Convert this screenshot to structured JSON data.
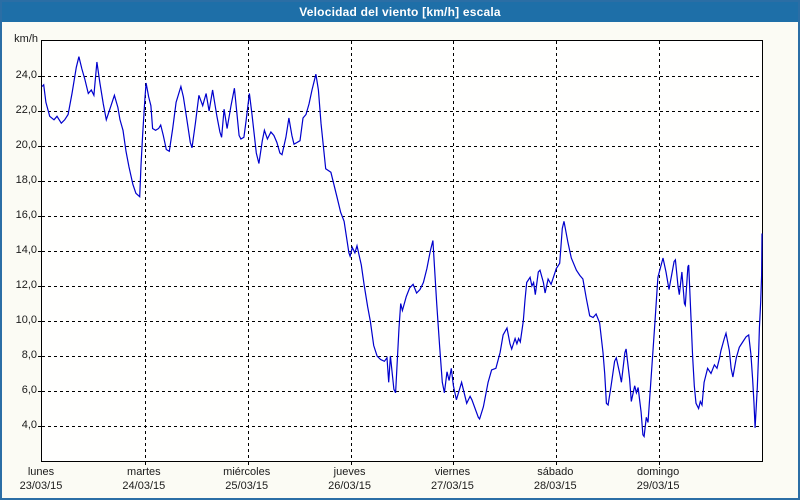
{
  "window": {
    "title": "Velocidad del viento [km/h] escala"
  },
  "axes": {
    "unit_label": "km/h",
    "y_tick_labels": [
      "24,0",
      "22,0",
      "20,0",
      "18,0",
      "16,0",
      "14,0",
      "12,0",
      "10,0",
      "8,0",
      "6,0",
      "4,0"
    ],
    "y_tick_values": [
      24,
      22,
      20,
      18,
      16,
      14,
      12,
      10,
      8,
      6,
      4
    ],
    "x_categories": [
      {
        "day": "lunes",
        "date": "23/03/15"
      },
      {
        "day": "martes",
        "date": "24/03/15"
      },
      {
        "day": "miércoles",
        "date": "25/03/15"
      },
      {
        "day": "jueves",
        "date": "26/03/15"
      },
      {
        "day": "viernes",
        "date": "27/03/15"
      },
      {
        "day": "sábado",
        "date": "28/03/15"
      },
      {
        "day": "domingo",
        "date": "29/03/15"
      }
    ]
  },
  "colors": {
    "titlebar": "#1e6fa8",
    "window_border": "#2b6ea5",
    "line": "#0000cd",
    "grid": "#000000",
    "plot_bg": "#fffffe",
    "page_bg": "#fbfbf4"
  },
  "chart_data": {
    "type": "line",
    "title": "Velocidad del viento [km/h] escala",
    "ylabel": "km/h",
    "ylim": [
      2,
      26
    ],
    "xlim_hours": [
      0,
      168
    ],
    "grid": "dashed",
    "legend": "none",
    "x_is_time": "hours over 7 days (23/03/15 - 29/03/15), day ticks every 24 h",
    "series": [
      {
        "name": "Velocidad del viento",
        "points": [
          [
            0,
            23.4
          ],
          [
            0.4,
            23.5
          ],
          [
            0.9,
            22.5
          ],
          [
            1.8,
            21.7
          ],
          [
            2.8,
            21.5
          ],
          [
            3.5,
            21.7
          ],
          [
            4.5,
            21.3
          ],
          [
            5.3,
            21.5
          ],
          [
            6.1,
            21.8
          ],
          [
            7,
            23
          ],
          [
            8,
            24.5
          ],
          [
            8.6,
            25.1
          ],
          [
            9.3,
            24.4
          ],
          [
            10,
            23.8
          ],
          [
            10.8,
            23
          ],
          [
            11.5,
            23.2
          ],
          [
            12.1,
            22.9
          ],
          [
            12.8,
            24.8
          ],
          [
            13.5,
            23.6
          ],
          [
            14.3,
            22.4
          ],
          [
            15,
            21.5
          ],
          [
            16.1,
            22.3
          ],
          [
            16.9,
            22.9
          ],
          [
            17.7,
            22.2
          ],
          [
            18.2,
            21.5
          ],
          [
            18.9,
            20.9
          ],
          [
            19.6,
            19.7
          ],
          [
            20.3,
            18.8
          ],
          [
            21.2,
            17.8
          ],
          [
            21.9,
            17.3
          ],
          [
            22.8,
            17.1
          ],
          [
            23.1,
            18.9
          ],
          [
            23.5,
            20.7
          ],
          [
            24,
            22.7
          ],
          [
            24.3,
            23.6
          ],
          [
            24.9,
            22.8
          ],
          [
            25.4,
            22.3
          ],
          [
            25.8,
            21
          ],
          [
            26.5,
            20.9
          ],
          [
            27.2,
            21
          ],
          [
            27.7,
            21.2
          ],
          [
            28.3,
            20.6
          ],
          [
            29,
            19.8
          ],
          [
            29.7,
            19.7
          ],
          [
            30.5,
            21
          ],
          [
            31.3,
            22.5
          ],
          [
            32.4,
            23.4
          ],
          [
            33,
            22.8
          ],
          [
            33.8,
            21.5
          ],
          [
            34.6,
            20.2
          ],
          [
            35,
            19.9
          ],
          [
            35.8,
            21.3
          ],
          [
            36.6,
            22.9
          ],
          [
            37.5,
            22.3
          ],
          [
            38.3,
            23
          ],
          [
            39,
            22
          ],
          [
            39.8,
            23.2
          ],
          [
            40.8,
            21.7
          ],
          [
            41.5,
            20.8
          ],
          [
            41.9,
            20.5
          ],
          [
            42.5,
            22.1
          ],
          [
            43.2,
            21
          ],
          [
            44.1,
            22.3
          ],
          [
            44.9,
            23.3
          ],
          [
            46,
            20.6
          ],
          [
            46.4,
            20.4
          ],
          [
            47.1,
            20.5
          ],
          [
            47.6,
            21.4
          ],
          [
            48,
            22.2
          ],
          [
            48.4,
            23
          ],
          [
            49,
            21.8
          ],
          [
            50,
            19.6
          ],
          [
            50.6,
            19
          ],
          [
            51.4,
            20.3
          ],
          [
            51.9,
            20.9
          ],
          [
            52.6,
            20.4
          ],
          [
            53.4,
            20.8
          ],
          [
            54.1,
            20.6
          ],
          [
            54.8,
            20.2
          ],
          [
            55.5,
            19.6
          ],
          [
            56,
            19.5
          ],
          [
            56.9,
            20.5
          ],
          [
            57.6,
            21.6
          ],
          [
            58.3,
            20.6
          ],
          [
            58.8,
            20.1
          ],
          [
            59.5,
            20.2
          ],
          [
            60.2,
            20.3
          ],
          [
            60.9,
            21.6
          ],
          [
            61.6,
            21.8
          ],
          [
            62.3,
            22.4
          ],
          [
            63,
            23.2
          ],
          [
            63.9,
            24.1
          ],
          [
            64.5,
            23.2
          ],
          [
            65.1,
            21.3
          ],
          [
            66.2,
            18.7
          ],
          [
            67.4,
            18.5
          ],
          [
            68.8,
            17.1
          ],
          [
            69.7,
            16.2
          ],
          [
            70.5,
            15.7
          ],
          [
            71.6,
            13.9
          ],
          [
            71.9,
            13.7
          ],
          [
            72.4,
            14.2
          ],
          [
            73,
            13.9
          ],
          [
            73.5,
            14.3
          ],
          [
            74.5,
            13.2
          ],
          [
            75.2,
            12
          ],
          [
            76,
            10.8
          ],
          [
            76.6,
            10
          ],
          [
            77.4,
            8.6
          ],
          [
            78.2,
            8
          ],
          [
            79,
            7.8
          ],
          [
            79.9,
            7.7
          ],
          [
            80.5,
            7.9
          ],
          [
            80.9,
            6.5
          ],
          [
            81.3,
            8
          ],
          [
            82.1,
            6.1
          ],
          [
            82.5,
            5.9
          ],
          [
            83.3,
            9.6
          ],
          [
            83.7,
            11
          ],
          [
            84.1,
            10.6
          ],
          [
            85,
            11.4
          ],
          [
            85.8,
            11.9
          ],
          [
            86.6,
            12.1
          ],
          [
            87.4,
            11.6
          ],
          [
            88.2,
            11.8
          ],
          [
            89,
            12.2
          ],
          [
            89.8,
            13
          ],
          [
            90.6,
            14
          ],
          [
            91.2,
            14.6
          ],
          [
            92.1,
            11
          ],
          [
            92.8,
            8.5
          ],
          [
            93.4,
            6.5
          ],
          [
            93.9,
            5.9
          ],
          [
            94.5,
            7.1
          ],
          [
            95,
            6.6
          ],
          [
            95.5,
            7.3
          ],
          [
            96,
            6.3
          ],
          [
            96.7,
            5.5
          ],
          [
            97.9,
            6.5
          ],
          [
            99.1,
            5.3
          ],
          [
            99.9,
            5.7
          ],
          [
            100.3,
            5.5
          ],
          [
            101.8,
            4.5
          ],
          [
            102.1,
            4.4
          ],
          [
            103,
            5.1
          ],
          [
            104.1,
            6.5
          ],
          [
            104.9,
            7.2
          ],
          [
            105.9,
            7.3
          ],
          [
            106.9,
            8.2
          ],
          [
            107.6,
            9.2
          ],
          [
            108.5,
            9.6
          ],
          [
            109.2,
            8.7
          ],
          [
            109.6,
            8.4
          ],
          [
            110.4,
            9
          ],
          [
            110.8,
            8.7
          ],
          [
            111.2,
            9
          ],
          [
            111.6,
            8.8
          ],
          [
            112.3,
            10
          ],
          [
            112.7,
            11.2
          ],
          [
            113.1,
            12.2
          ],
          [
            113.9,
            12.5
          ],
          [
            114.3,
            12
          ],
          [
            114.7,
            12.2
          ],
          [
            115.1,
            11.5
          ],
          [
            115.8,
            12.8
          ],
          [
            116.2,
            12.9
          ],
          [
            117,
            12.2
          ],
          [
            117.4,
            11.6
          ],
          [
            118.1,
            12.4
          ],
          [
            118.8,
            12.1
          ],
          [
            120,
            13
          ],
          [
            120.8,
            13.3
          ],
          [
            121.4,
            15.3
          ],
          [
            121.8,
            15.7
          ],
          [
            122.7,
            14.5
          ],
          [
            123.5,
            13.6
          ],
          [
            124.7,
            12.9
          ],
          [
            125.5,
            12.6
          ],
          [
            126.2,
            12.4
          ],
          [
            127,
            11.3
          ],
          [
            127.8,
            10.3
          ],
          [
            128.6,
            10.2
          ],
          [
            129.3,
            10.4
          ],
          [
            130.1,
            9.9
          ],
          [
            130.9,
            8.2
          ],
          [
            131.3,
            7
          ],
          [
            131.7,
            5.3
          ],
          [
            132.1,
            5.2
          ],
          [
            132.8,
            6.3
          ],
          [
            133.6,
            7.7
          ],
          [
            134,
            7.9
          ],
          [
            134.8,
            7
          ],
          [
            135.2,
            6.5
          ],
          [
            136,
            8.2
          ],
          [
            136.3,
            8.4
          ],
          [
            137.1,
            6.7
          ],
          [
            137.5,
            5.4
          ],
          [
            138.3,
            6.3
          ],
          [
            138.7,
            5.9
          ],
          [
            139.1,
            6.2
          ],
          [
            139.8,
            4.8
          ],
          [
            140.2,
            3.5
          ],
          [
            140.5,
            3.4
          ],
          [
            141,
            4.5
          ],
          [
            141.4,
            4.2
          ],
          [
            142.2,
            7
          ],
          [
            143,
            9.9
          ],
          [
            143.7,
            12.5
          ],
          [
            144.9,
            13.6
          ],
          [
            145.6,
            12.8
          ],
          [
            146.3,
            11.8
          ],
          [
            147.5,
            13.4
          ],
          [
            147.8,
            13.5
          ],
          [
            148.4,
            12
          ],
          [
            148.7,
            11.5
          ],
          [
            149.3,
            12.8
          ],
          [
            149.9,
            11
          ],
          [
            150.1,
            10.9
          ],
          [
            150.7,
            13.1
          ],
          [
            150.9,
            13.2
          ],
          [
            151.4,
            10.3
          ],
          [
            151.8,
            8
          ],
          [
            152.2,
            6.3
          ],
          [
            152.6,
            5.3
          ],
          [
            153.2,
            5
          ],
          [
            153.6,
            5.4
          ],
          [
            154,
            5.2
          ],
          [
            154.5,
            6.5
          ],
          [
            155.3,
            7.3
          ],
          [
            156.1,
            7
          ],
          [
            156.9,
            7.5
          ],
          [
            157.5,
            7.3
          ],
          [
            158.1,
            7.9
          ],
          [
            158.4,
            8.3
          ],
          [
            159.2,
            9
          ],
          [
            159.6,
            9.3
          ],
          [
            160.4,
            8.3
          ],
          [
            160.8,
            7.3
          ],
          [
            161.2,
            6.8
          ],
          [
            162,
            7.9
          ],
          [
            162.7,
            8.5
          ],
          [
            163.5,
            8.8
          ],
          [
            164.3,
            9.1
          ],
          [
            164.9,
            9.2
          ],
          [
            165.4,
            8.1
          ],
          [
            165.8,
            6.7
          ],
          [
            166.1,
            5.4
          ],
          [
            166.4,
            3.9
          ],
          [
            166.9,
            6.2
          ],
          [
            167.2,
            8.1
          ],
          [
            167.4,
            9.6
          ],
          [
            167.7,
            11.1
          ],
          [
            167.9,
            12.6
          ],
          [
            168,
            15
          ]
        ]
      }
    ]
  }
}
